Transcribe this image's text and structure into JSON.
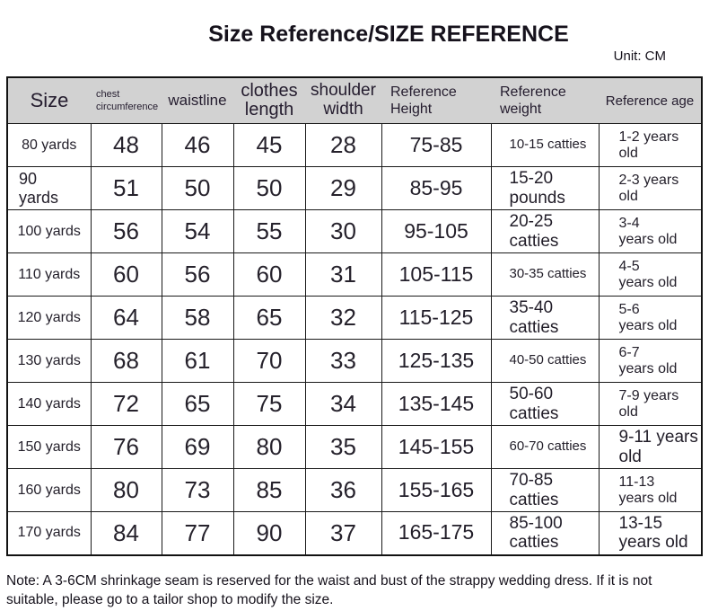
{
  "title": "Size Reference/SIZE REFERENCE",
  "unit_label": "Unit: CM",
  "table": {
    "headers": [
      "Size",
      "chest\ncircumference",
      "waistline",
      "clothes\nlength",
      "shoulder\nwidth",
      "Reference\nHeight",
      "Reference\nweight",
      "Reference age"
    ],
    "rows": [
      [
        "80 yards",
        "48",
        "46",
        "45",
        "28",
        "75-85",
        "10-15 catties",
        "1-2 years\nold"
      ],
      [
        "90\nyards",
        "51",
        "50",
        "50",
        "29",
        "85-95",
        "15-20\npounds",
        "2-3 years\nold"
      ],
      [
        "100 yards",
        "56",
        "54",
        "55",
        "30",
        "95-105",
        "20-25\ncatties",
        "3-4\nyears old"
      ],
      [
        "110 yards",
        "60",
        "56",
        "60",
        "31",
        "105-115",
        "30-35 catties",
        "4-5\nyears old"
      ],
      [
        "120 yards",
        "64",
        "58",
        "65",
        "32",
        "115-125",
        "35-40\ncatties",
        "5-6\nyears old"
      ],
      [
        "130 yards",
        "68",
        "61",
        "70",
        "33",
        "125-135",
        "40-50 catties",
        "6-7\nyears old"
      ],
      [
        "140 yards",
        "72",
        "65",
        "75",
        "34",
        "135-145",
        "50-60\ncatties",
        "7-9 years\nold"
      ],
      [
        "150 yards",
        "76",
        "69",
        "80",
        "35",
        "145-155",
        "60-70 catties",
        "9-11 years\nold"
      ],
      [
        "160 yards",
        "80",
        "73",
        "85",
        "36",
        "155-165",
        "70-85\ncatties",
        "11-13\nyears old"
      ],
      [
        "170 yards",
        "84",
        "77",
        "90",
        "37",
        "165-175",
        "85-100\ncatties",
        "13-15\nyears old"
      ]
    ]
  },
  "note": "Note: A 3-6CM shrinkage seam is reserved for the waist and bust of the strappy wedding dress. If it is not suitable, please go to a tailor shop to modify the size.",
  "colors": {
    "header_bg": "#d2d2d2",
    "border": "#1a1a1a",
    "text": "#1b1722"
  }
}
